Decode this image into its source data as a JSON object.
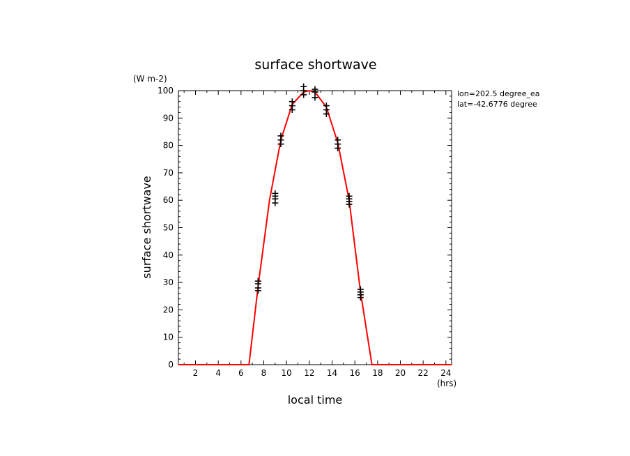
{
  "chart_data": {
    "type": "line",
    "title": "surface shortwave",
    "xlabel": "local time",
    "ylabel": "surface shortwave",
    "y_units_label": "(W m-2)",
    "x_units_label": "(hrs)",
    "annotations": [
      "lon=202.5 degree_ea",
      "lat=-42.6776 degree"
    ],
    "xlim": [
      0.5,
      24.5
    ],
    "ylim": [
      0,
      100
    ],
    "x_ticks": [
      2,
      4,
      6,
      8,
      10,
      12,
      14,
      16,
      18,
      20,
      22,
      24
    ],
    "y_ticks": [
      0,
      10,
      20,
      30,
      40,
      50,
      60,
      70,
      80,
      90,
      100
    ],
    "grid": false,
    "colors": {
      "line": "#ff0000",
      "markers": "#000000"
    },
    "series": [
      {
        "marker": "plus",
        "x": [
          7.5,
          7.5,
          7.5,
          7.5,
          9.0,
          9.0,
          9.0,
          9.0,
          9.5,
          9.5,
          9.5,
          10.5,
          10.5,
          10.5,
          11.5,
          11.5,
          11.5,
          12.5,
          12.5,
          12.5,
          13.5,
          13.5,
          13.5,
          14.5,
          14.5,
          14.5,
          15.5,
          15.5,
          15.5,
          15.5,
          16.5,
          16.5,
          16.5,
          16.5
        ],
        "y": [
          27,
          28,
          29.5,
          30.5,
          59,
          60.5,
          61.5,
          62.5,
          80.5,
          82,
          83.5,
          93,
          94.5,
          96,
          98.5,
          100,
          101.5,
          97.5,
          99.5,
          100.5,
          91.5,
          93,
          94.5,
          79,
          80.5,
          82,
          58.5,
          59.5,
          60.5,
          61.5,
          24.5,
          25.5,
          26.5,
          27.5
        ]
      },
      {
        "style": "line",
        "x": [
          0.5,
          6.7,
          7.5,
          8.5,
          9.5,
          10.5,
          11.5,
          12.0,
          12.5,
          13.5,
          14.5,
          15.5,
          16.5,
          17.5,
          24.5
        ],
        "y": [
          0,
          0,
          28.5,
          60,
          82,
          95,
          99.5,
          100,
          99.5,
          94,
          81,
          60,
          26.5,
          0,
          0
        ]
      }
    ]
  }
}
